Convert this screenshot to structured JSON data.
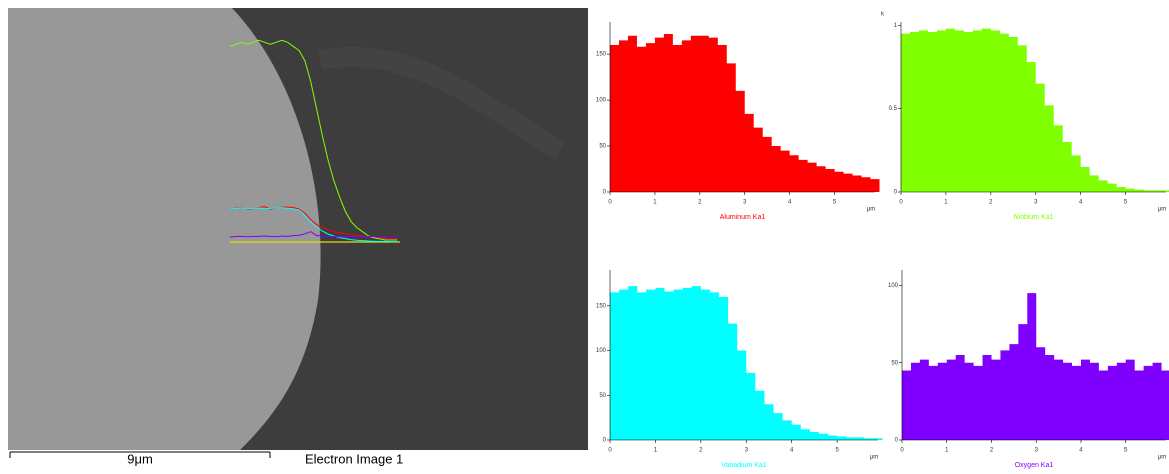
{
  "image": {
    "scale_bar": "9μm",
    "caption": "Electron Image 1"
  },
  "chart_data": [
    {
      "type": "area",
      "title": "Aluminum Ka1",
      "color": "#ff0000",
      "xlabel": "μm",
      "x": [
        0,
        0.2,
        0.4,
        0.6,
        0.8,
        1,
        1.2,
        1.4,
        1.6,
        1.8,
        2,
        2.2,
        2.4,
        2.6,
        2.8,
        3,
        3.2,
        3.4,
        3.6,
        3.8,
        4,
        4.2,
        4.4,
        4.6,
        4.8,
        5,
        5.2,
        5.4,
        5.6,
        5.8
      ],
      "values": [
        160,
        165,
        170,
        158,
        162,
        168,
        172,
        160,
        165,
        170,
        170,
        168,
        160,
        140,
        110,
        85,
        70,
        60,
        50,
        45,
        40,
        35,
        32,
        28,
        25,
        22,
        20,
        18,
        16,
        14
      ],
      "xlim": [
        0,
        5.9
      ],
      "xticks": [
        0,
        1,
        2,
        3,
        4,
        5
      ],
      "ylim": [
        0,
        185
      ],
      "yticks": [
        0,
        50,
        100,
        150
      ]
    },
    {
      "type": "area",
      "title": "Niobium Ka1",
      "color": "#80ff00",
      "xlabel": "μm",
      "ylabel": "k",
      "x": [
        0,
        0.2,
        0.4,
        0.6,
        0.8,
        1,
        1.2,
        1.4,
        1.6,
        1.8,
        2,
        2.2,
        2.4,
        2.6,
        2.8,
        3,
        3.2,
        3.4,
        3.6,
        3.8,
        4,
        4.2,
        4.4,
        4.6,
        4.8,
        5,
        5.2,
        5.4,
        5.6,
        5.8
      ],
      "values": [
        0.95,
        0.96,
        0.97,
        0.96,
        0.97,
        0.98,
        0.97,
        0.96,
        0.97,
        0.98,
        0.97,
        0.95,
        0.93,
        0.88,
        0.78,
        0.65,
        0.52,
        0.4,
        0.3,
        0.22,
        0.15,
        0.1,
        0.07,
        0.05,
        0.03,
        0.02,
        0.015,
        0.01,
        0.01,
        0.01
      ],
      "xlim": [
        0,
        5.9
      ],
      "xticks": [
        0,
        1,
        2,
        3,
        4,
        5
      ],
      "ylim": [
        0,
        1.02
      ],
      "yticks": [
        0,
        0.5,
        1
      ]
    },
    {
      "type": "area",
      "title": "Vanadium Ka1",
      "color": "#00ffff",
      "xlabel": "μm",
      "x": [
        0,
        0.2,
        0.4,
        0.6,
        0.8,
        1,
        1.2,
        1.4,
        1.6,
        1.8,
        2,
        2.2,
        2.4,
        2.6,
        2.8,
        3,
        3.2,
        3.4,
        3.6,
        3.8,
        4,
        4.2,
        4.4,
        4.6,
        4.8,
        5,
        5.2,
        5.4,
        5.6,
        5.8
      ],
      "values": [
        165,
        168,
        172,
        165,
        168,
        170,
        166,
        168,
        170,
        172,
        168,
        165,
        160,
        130,
        100,
        75,
        55,
        40,
        30,
        22,
        17,
        12,
        9,
        7,
        5,
        4,
        3,
        3,
        2,
        2
      ],
      "xlim": [
        0,
        5.9
      ],
      "xticks": [
        0,
        1,
        2,
        3,
        4,
        5
      ],
      "ylim": [
        0,
        190
      ],
      "yticks": [
        0,
        50,
        100,
        150
      ]
    },
    {
      "type": "area",
      "title": "Oxygen Ka1",
      "color": "#8000ff",
      "xlabel": "μm",
      "x": [
        0,
        0.2,
        0.4,
        0.6,
        0.8,
        1,
        1.2,
        1.4,
        1.6,
        1.8,
        2,
        2.2,
        2.4,
        2.6,
        2.8,
        3,
        3.2,
        3.4,
        3.6,
        3.8,
        4,
        4.2,
        4.4,
        4.6,
        4.8,
        5,
        5.2,
        5.4,
        5.6,
        5.8
      ],
      "values": [
        45,
        50,
        52,
        48,
        50,
        52,
        55,
        50,
        48,
        55,
        52,
        58,
        62,
        75,
        95,
        60,
        55,
        52,
        50,
        48,
        52,
        50,
        45,
        48,
        50,
        52,
        45,
        48,
        50,
        45
      ],
      "xlim": [
        0,
        5.9
      ],
      "xticks": [
        0,
        1,
        2,
        3,
        4,
        5
      ],
      "ylim": [
        0,
        110
      ],
      "yticks": [
        0,
        50,
        100
      ]
    }
  ]
}
